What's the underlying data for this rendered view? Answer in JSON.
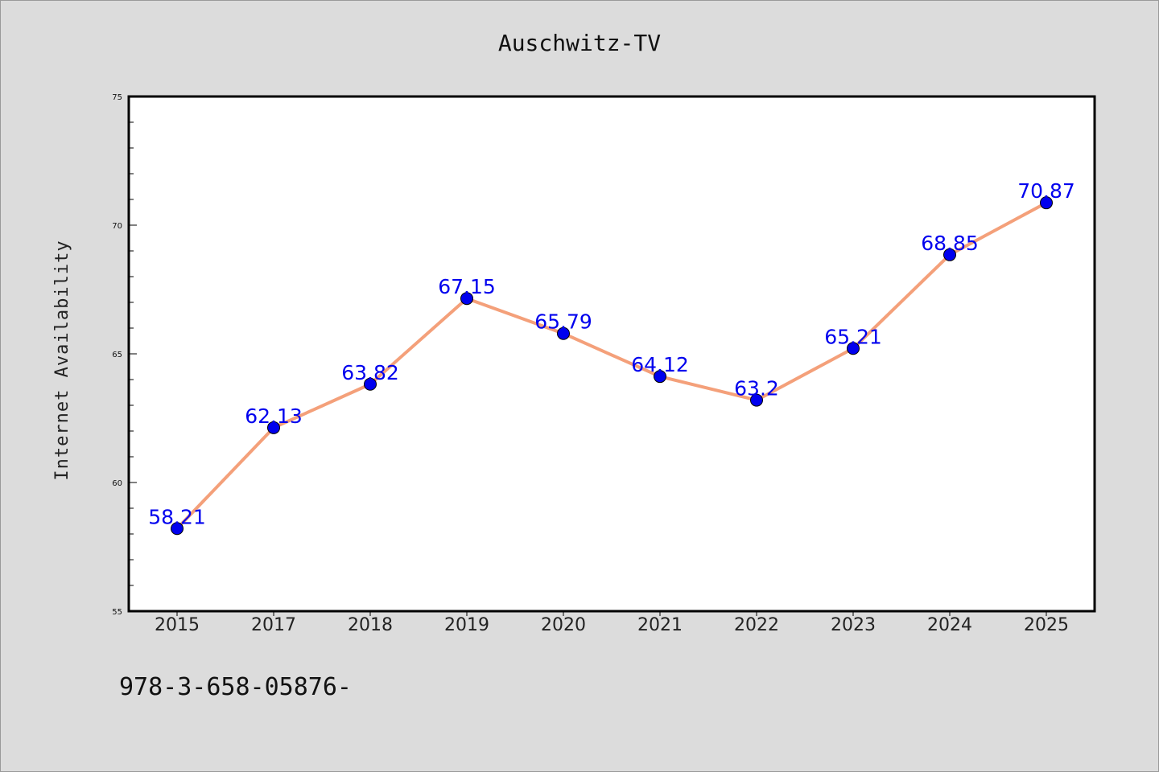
{
  "chart_data": {
    "type": "line",
    "title": "Auschwitz-TV",
    "xlabel": "",
    "ylabel": "Internet Availability",
    "categories": [
      "2015",
      "2017",
      "2018",
      "2019",
      "2020",
      "2021",
      "2022",
      "2023",
      "2024",
      "2025"
    ],
    "series": [
      {
        "values": [
          58.21,
          62.13,
          63.82,
          67.15,
          65.79,
          64.12,
          63.2,
          65.21,
          68.85,
          70.87
        ],
        "labels": [
          "58.21",
          "62.13",
          "63.82",
          "67.15",
          "65.79",
          "64.12",
          "63.2",
          "65.21",
          "68.85",
          "70.87"
        ],
        "line_color": "#f4a07a",
        "marker_color": "#0000ee"
      }
    ],
    "ylim": [
      55,
      75
    ],
    "yticks": [
      "55",
      "60",
      "65",
      "70",
      "75"
    ],
    "grid": false,
    "legend": "none"
  },
  "footer": {
    "text": "978-3-658-05876-"
  }
}
